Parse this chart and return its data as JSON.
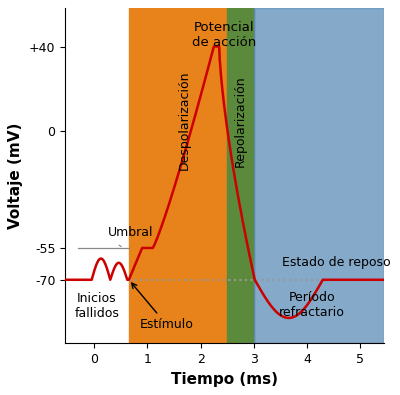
{
  "title": "",
  "xlabel": "Tiempo (ms)",
  "ylabel": "Voltaje (mV)",
  "xlim": [
    -0.55,
    5.45
  ],
  "ylim": [
    -100,
    58
  ],
  "yticks": [
    -70,
    -55,
    0,
    40
  ],
  "ytick_labels": [
    "-70",
    "-55",
    "0",
    "+40"
  ],
  "xticks": [
    0,
    1,
    2,
    3,
    4,
    5
  ],
  "resting_voltage": -70,
  "threshold_voltage": -55,
  "peak_voltage": 40,
  "bg_color": "#ffffff",
  "orange_color": "#E8821A",
  "green_color": "#5C8A3C",
  "blue_color": "#5B8DB8",
  "line_color": "#CC0000",
  "dotted_line_color": "#999999",
  "threshold_line_color": "#888888",
  "label_fontsize": 9,
  "axis_label_fontsize": 11,
  "orange_xstart": 0.65,
  "orange_xend": 2.5,
  "green_xstart": 2.5,
  "green_xend": 3.0,
  "blue_xstart": 3.0,
  "blue_xend": 5.45
}
